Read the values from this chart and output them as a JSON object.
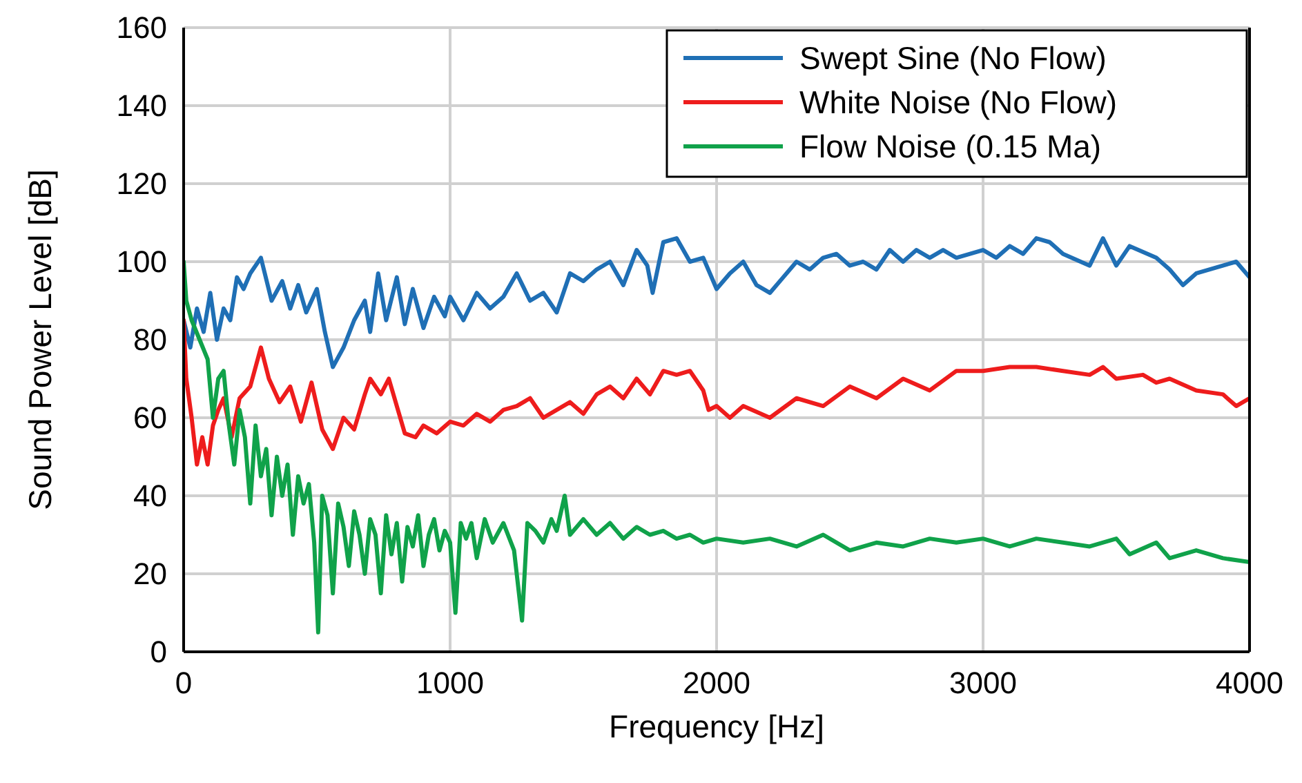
{
  "chart_data": {
    "type": "line",
    "xlabel": "Frequency [Hz]",
    "ylabel": "Sound Power Level [dB]",
    "xlim": [
      0,
      4000
    ],
    "xticks": [
      0,
      1000,
      2000,
      3000,
      4000
    ],
    "ylim": [
      0,
      160
    ],
    "yticks": [
      0,
      20,
      40,
      60,
      80,
      100,
      120,
      140,
      160
    ],
    "grid": true,
    "legend": "top right",
    "line_style": "solid",
    "series": [
      {
        "name": "Swept Sine (No Flow)",
        "color": "#1f6fb5",
        "x": [
          0,
          25,
          50,
          75,
          100,
          125,
          150,
          175,
          200,
          225,
          250,
          290,
          330,
          370,
          400,
          430,
          460,
          500,
          530,
          560,
          600,
          640,
          680,
          700,
          730,
          760,
          800,
          830,
          860,
          900,
          940,
          980,
          1000,
          1050,
          1100,
          1150,
          1200,
          1250,
          1300,
          1350,
          1400,
          1450,
          1500,
          1550,
          1600,
          1650,
          1700,
          1740,
          1760,
          1800,
          1850,
          1900,
          1950,
          2000,
          2050,
          2100,
          2150,
          2200,
          2250,
          2300,
          2350,
          2400,
          2450,
          2500,
          2550,
          2600,
          2650,
          2700,
          2750,
          2800,
          2850,
          2900,
          3000,
          3050,
          3100,
          3150,
          3200,
          3250,
          3300,
          3400,
          3450,
          3500,
          3550,
          3650,
          3700,
          3750,
          3800,
          3900,
          3950,
          4000
        ],
        "values": [
          85,
          78,
          88,
          82,
          92,
          80,
          88,
          85,
          96,
          93,
          97,
          101,
          90,
          95,
          88,
          94,
          87,
          93,
          82,
          73,
          78,
          85,
          90,
          82,
          97,
          85,
          96,
          84,
          93,
          83,
          91,
          86,
          91,
          85,
          92,
          88,
          91,
          97,
          90,
          92,
          87,
          97,
          95,
          98,
          100,
          94,
          103,
          99,
          92,
          105,
          106,
          100,
          101,
          93,
          97,
          100,
          94,
          92,
          96,
          100,
          98,
          101,
          102,
          99,
          100,
          98,
          103,
          100,
          103,
          101,
          103,
          101,
          103,
          101,
          104,
          102,
          106,
          105,
          102,
          99,
          106,
          99,
          104,
          101,
          98,
          94,
          97,
          99,
          100,
          96
        ]
      },
      {
        "name": "White Noise (No Flow)",
        "color": "#ee1c1c",
        "x": [
          0,
          10,
          30,
          50,
          70,
          90,
          110,
          130,
          150,
          180,
          210,
          250,
          290,
          320,
          360,
          400,
          440,
          480,
          520,
          560,
          600,
          640,
          680,
          700,
          740,
          770,
          800,
          830,
          870,
          900,
          950,
          1000,
          1050,
          1100,
          1150,
          1200,
          1250,
          1300,
          1350,
          1400,
          1450,
          1500,
          1550,
          1600,
          1650,
          1700,
          1750,
          1800,
          1850,
          1900,
          1950,
          1970,
          2000,
          2050,
          2100,
          2200,
          2300,
          2400,
          2500,
          2600,
          2700,
          2800,
          2900,
          3000,
          3100,
          3200,
          3300,
          3400,
          3450,
          3500,
          3600,
          3650,
          3700,
          3800,
          3900,
          3950,
          4000
        ],
        "values": [
          85,
          70,
          60,
          48,
          55,
          48,
          58,
          62,
          65,
          55,
          65,
          68,
          78,
          70,
          64,
          68,
          59,
          69,
          57,
          52,
          60,
          57,
          66,
          70,
          66,
          70,
          63,
          56,
          55,
          58,
          56,
          59,
          58,
          61,
          59,
          62,
          63,
          65,
          60,
          62,
          64,
          61,
          66,
          68,
          65,
          70,
          66,
          72,
          71,
          72,
          67,
          62,
          63,
          60,
          63,
          60,
          65,
          63,
          68,
          65,
          70,
          67,
          72,
          72,
          73,
          73,
          72,
          71,
          73,
          70,
          71,
          69,
          70,
          67,
          66,
          63,
          65
        ]
      },
      {
        "name": "Flow Noise (0.15 Ma)",
        "color": "#10a24a",
        "x": [
          0,
          10,
          30,
          60,
          90,
          110,
          130,
          150,
          170,
          190,
          210,
          230,
          250,
          270,
          290,
          310,
          330,
          350,
          370,
          390,
          410,
          430,
          450,
          470,
          490,
          505,
          520,
          540,
          560,
          580,
          600,
          620,
          640,
          660,
          680,
          700,
          720,
          740,
          760,
          780,
          800,
          820,
          840,
          860,
          880,
          900,
          920,
          940,
          960,
          980,
          1000,
          1020,
          1040,
          1060,
          1080,
          1100,
          1130,
          1160,
          1200,
          1240,
          1270,
          1290,
          1320,
          1350,
          1380,
          1400,
          1430,
          1450,
          1500,
          1550,
          1600,
          1650,
          1700,
          1750,
          1800,
          1850,
          1900,
          1950,
          2000,
          2100,
          2200,
          2300,
          2400,
          2500,
          2600,
          2700,
          2800,
          2900,
          3000,
          3100,
          3200,
          3300,
          3400,
          3500,
          3550,
          3650,
          3700,
          3800,
          3900,
          4000
        ],
        "values": [
          100,
          90,
          85,
          80,
          75,
          60,
          70,
          72,
          58,
          48,
          62,
          55,
          38,
          58,
          45,
          52,
          35,
          50,
          40,
          48,
          30,
          45,
          38,
          43,
          28,
          5,
          40,
          35,
          15,
          38,
          32,
          22,
          36,
          30,
          20,
          34,
          30,
          15,
          35,
          25,
          33,
          18,
          32,
          27,
          35,
          22,
          30,
          34,
          26,
          31,
          28,
          10,
          33,
          29,
          33,
          24,
          34,
          28,
          33,
          26,
          8,
          33,
          31,
          28,
          34,
          31,
          40,
          30,
          34,
          30,
          33,
          29,
          32,
          30,
          31,
          29,
          30,
          28,
          29,
          28,
          29,
          27,
          30,
          26,
          28,
          27,
          29,
          28,
          29,
          27,
          29,
          28,
          27,
          29,
          25,
          28,
          24,
          26,
          24,
          23
        ]
      }
    ]
  }
}
